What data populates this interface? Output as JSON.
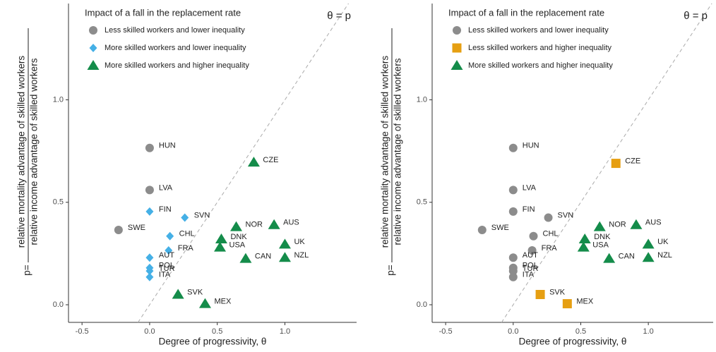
{
  "chart_data": [
    {
      "type": "scatter",
      "legend_title": "Impact of a fall in the replacement rate",
      "annotation": "θ = p",
      "xlabel": "Degree of progressivity, θ",
      "ylabel": {
        "prefix": "p=",
        "numerator": "relative mortality advantage of skilled workers",
        "denominator": "relative income advantage of skilled workers"
      },
      "xlim": [
        -0.6,
        1.53
      ],
      "ylim": [
        -0.086,
        1.47
      ],
      "xticks": [
        -0.5,
        {
          "value": 0,
          "label": "0.0"
        },
        0.5,
        {
          "value": 1,
          "label": "1.0"
        }
      ],
      "yticks": [
        {
          "value": 0,
          "label": "0.0"
        },
        0.5,
        {
          "value": 1,
          "label": "1.0"
        }
      ],
      "series": [
        {
          "name": "Less skilled workers and lower inequality",
          "color": "#8c8c8c",
          "marker": "circle",
          "labels": [
            "SWE",
            "HUN",
            "LVA"
          ],
          "x": [
            -0.23,
            0,
            0
          ],
          "y": [
            0.365,
            0.765,
            0.56
          ]
        },
        {
          "name": "More skilled workers and lower inequality",
          "color": "#45b0e6",
          "marker": "diamond",
          "labels": [
            "FIN",
            "SVN",
            "CHL",
            "FRA",
            "AUT",
            "POL",
            "TUR",
            "ITA"
          ],
          "x": [
            0,
            0.26,
            0.15,
            0.14,
            0,
            0,
            0,
            0
          ],
          "y": [
            0.455,
            0.425,
            0.335,
            0.265,
            0.23,
            0.18,
            0.165,
            0.135
          ]
        },
        {
          "name": "More skilled workers and higher inequality",
          "color": "#148c4a",
          "marker": "triangle",
          "labels": [
            "CZE",
            "NOR",
            "AUS",
            "DNK",
            "USA",
            "UK",
            "NZL",
            "CAN",
            "SVK",
            "MEX"
          ],
          "x": [
            0.77,
            0.64,
            0.92,
            0.53,
            0.52,
            1.0,
            1.0,
            0.71,
            0.21,
            0.41
          ],
          "y": [
            0.695,
            0.38,
            0.39,
            0.32,
            0.28,
            0.295,
            0.23,
            0.225,
            0.05,
            0.005
          ]
        }
      ]
    },
    {
      "type": "scatter",
      "legend_title": "Impact of a fall in the replacement rate",
      "annotation": "θ = p",
      "xlabel": "Degree of progressivity, θ",
      "ylabel": {
        "prefix": "p=",
        "numerator": "relative mortality advantage of skilled workers",
        "denominator": "relative income advantage of skilled workers"
      },
      "xlim": [
        -0.6,
        1.48
      ],
      "ylim": [
        -0.086,
        1.47
      ],
      "xticks": [
        -0.5,
        {
          "value": 0,
          "label": "0.0"
        },
        0.5,
        {
          "value": 1,
          "label": "1.0"
        }
      ],
      "yticks": [
        {
          "value": 0,
          "label": "0.0"
        },
        0.5,
        {
          "value": 1,
          "label": "1.0"
        }
      ],
      "series": [
        {
          "name": "Less skilled workers and lower inequality",
          "color": "#8c8c8c",
          "marker": "circle",
          "labels": [
            "SWE",
            "HUN",
            "LVA",
            "FIN",
            "SVN",
            "CHL",
            "FRA",
            "AUT",
            "POL",
            "TUR",
            "ITA"
          ],
          "x": [
            -0.23,
            0,
            0,
            0,
            0.26,
            0.15,
            0.14,
            0,
            0,
            0,
            0
          ],
          "y": [
            0.365,
            0.765,
            0.56,
            0.455,
            0.425,
            0.335,
            0.265,
            0.23,
            0.18,
            0.165,
            0.135
          ]
        },
        {
          "name": "Less skilled workers and higher inequality",
          "color": "#e69f12",
          "marker": "square",
          "labels": [
            "CZE",
            "SVK",
            "MEX"
          ],
          "x": [
            0.76,
            0.2,
            0.4
          ],
          "y": [
            0.69,
            0.05,
            0.005
          ]
        },
        {
          "name": "More skilled workers and higher inequality",
          "color": "#148c4a",
          "marker": "triangle",
          "labels": [
            "NOR",
            "AUS",
            "DNK",
            "USA",
            "UK",
            "NZL",
            "CAN"
          ],
          "x": [
            0.64,
            0.91,
            0.53,
            0.52,
            1.0,
            1.0,
            0.71
          ],
          "y": [
            0.38,
            0.39,
            0.32,
            0.28,
            0.295,
            0.23,
            0.225
          ]
        }
      ]
    }
  ]
}
